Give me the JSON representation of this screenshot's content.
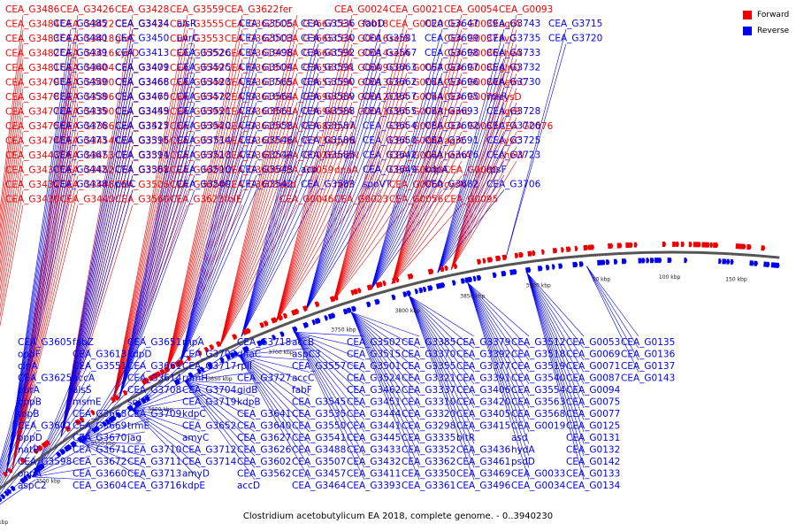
{
  "caption": "Clostridium acetobutylicum EA 2018, complete genome. - 0..3940230",
  "legend": [
    {
      "label": "Forward",
      "color": "#ee0000"
    },
    {
      "label": "Reverse",
      "color": "#0000ee"
    }
  ],
  "colors": {
    "forward": "#ee0000",
    "reverse": "#0000ee",
    "backbone": "#555555"
  },
  "ticks": [
    "3450 kbp",
    "3500 kbp",
    "3550 kbp",
    "3600 kbp",
    "3650 kbp",
    "3700 kbp",
    "3750 kbp",
    "3800 kbp",
    "3850 kbp",
    "3900 kbp",
    "50 kbp",
    "100 kbp",
    "150 kbp"
  ],
  "labels": {
    "forward": [
      "CEA_G3486",
      "CEA_G3484",
      "CEA_G3483",
      "CEA_G3482",
      "CEA_G3481",
      "CEA_G3479",
      "CEA_G3478",
      "CEA_G3477",
      "CEA_G3475",
      "CEA_G3474",
      "CEA_G3443",
      "CEA_G3437",
      "CEA_G3431",
      "CEA_G3430",
      "CEA_G3426",
      "CEA_G3422",
      "CEA_G3418",
      "CEA_G3416",
      "CEA_G3404",
      "CEA_G3400",
      "CEA_G3396",
      "CEA_G3390",
      "CEA_G3386",
      "CEA_G3454",
      "CEA_G3453",
      "CEA_G3452",
      "CEA_G3448",
      "CEA_G3440",
      "CEA_G3428",
      "CEA_G3424",
      "glvC",
      "xynD",
      "CEA_G3471",
      "CEA_G3466",
      "CEA_G3470",
      "CEA_G3455",
      "CEA_G3517",
      "CEA_G3516",
      "CEA_G3511",
      "CEA_G3508",
      "CEA_G3506",
      "CEA_G3560",
      "CEA_G3559",
      "CEA_G3555",
      "CEA_G3553",
      "CEA_G3552",
      "CEA_G3549",
      "CEA_G3548",
      "CEA_G3547",
      "CEA_G3595",
      "CEA_G3594",
      "CEA_G3573",
      "CEA_G3572",
      "CEA_G3629",
      "CEA_G3624",
      "CEA_G3623",
      "CEA_G3622",
      "CEA_G3621",
      "CEA_G3620",
      "CEA_G3619",
      "CEA_G3618",
      "CEA_G3617",
      "CEA_G3616",
      "CEA_G3608",
      "CEA_G3615",
      "CEA_G3607",
      "CEA_G3612",
      "CEA_G3606",
      "CEA_G3603",
      "folE",
      "fer",
      "CEA_G3667",
      "CEA_G3665",
      "CEA_G3664",
      "CEA_G3658",
      "CEA_G3653",
      "CEA_G3690",
      "CEA_G3694",
      "CEA_G3683",
      "CEA_G3734",
      "CEA_G0026",
      "CEA_G0059",
      "dcd",
      "CEA_G0046",
      "CEA_G0024",
      "CEA_G0018",
      "CEA_G0016",
      "CEA_G0014",
      "CEA_G0009",
      "CEA_G0013",
      "CEA_G0012",
      "CEA_G0011",
      "gyrA",
      "gyrB",
      "dnaN",
      "dnaA",
      "recF",
      "CEA_G0023",
      "CEA_G0021",
      "CEA_G0020",
      "serS",
      "serA",
      "CEA_G0057",
      "CEA_G0045",
      "CEA_G0044",
      "CEA_G0043",
      "CEA_G0036",
      "CEA_G0042",
      "CEA_G0041",
      "CEA_G0040",
      "CEA_G0060",
      "CEA_G0056",
      "CEA_G0054",
      "CEA_G0039",
      "CEA_G0037",
      "CEA_G0086",
      "CEA_G0085",
      "CEA_G0084",
      "CEA_G0070",
      "hemL",
      "CEA_G0083",
      "agrC",
      "hemA",
      "CEA_G0080",
      "cysN",
      "CEA_G0095",
      "CEA_G0093",
      "agrA",
      "ilvC",
      "cheA",
      "glnQ",
      "hemC",
      "cysD",
      "agrB",
      "CEA_G0076",
      "cysC",
      "cheW"
    ],
    "reverse": [
      "CEA_G3485",
      "CEA_G3480",
      "CEA_G3439",
      "CEA_G3460",
      "CEA_G3459",
      "CEA_G3458",
      "CEA_G3435",
      "CEA_G3476",
      "CEA_G3473",
      "CEA_G3467",
      "CEA_G3442",
      "CEA_G3438",
      "CEA_G3434",
      "CEA_G3450",
      "CEA_G3413",
      "CEA_G3409",
      "CEA_G3468",
      "CEA_G3465",
      "CEA_G3449",
      "CEA_G3425",
      "CEA_G3395",
      "CEA_G3394",
      "CEA_G3381",
      "polC",
      "alsR",
      "uvrC",
      "CEA_G3526",
      "CEA_G3525",
      "CEA_G3523",
      "CEA_G3522",
      "CEA_G3521",
      "CEA_G3520",
      "CEA_G3514",
      "CEA_G3513",
      "CEA_G3510",
      "CEA_G3509",
      "CEA_G3505",
      "CEA_G3503",
      "CEA_G3498",
      "CEA_G3504",
      "CEA_G3565",
      "CEA_G3564",
      "CEA_G3561",
      "CEA_G3558",
      "CEA_G3546",
      "CEA_G3544",
      "CEA_G3543",
      "CEA_G3542",
      "CEA_G3536",
      "CEA_G3530",
      "CEA_G3592",
      "CEA_G3591",
      "CEA_G3590",
      "CEA_G3589",
      "CEA_G3588",
      "CEA_G3587",
      "CEA_G3586",
      "CEA_G3585",
      "acp",
      "CEA_G3583",
      "fabD",
      "CEA_G3581",
      "CEA_G3567",
      "CEA_G3663",
      "CEA_G3662",
      "CEA_G3657",
      "CEA_G3655",
      "CEA_G3654",
      "CEA_G3650",
      "CEA_G3642",
      "CEA_G3649",
      "spoVT",
      "CEA_G3647",
      "CEA_G3699",
      "CEA_G3698",
      "CEA_G3697",
      "CEA_G3696",
      "CEA_G3695",
      "CEA_G3693",
      "CEA_G3692",
      "CEA_G3691",
      "CEA_G3676",
      "kdpA",
      "CEA_G3682",
      "CEA_G3743",
      "CEA_G3735",
      "CEA_G3733",
      "CEA_G3732",
      "CEA_G3730",
      "rpsR",
      "CEA_G3728",
      "CEA_G3726",
      "CEA_G3725",
      "CEA_G3723",
      "rpsF",
      "CEA_G3706",
      "CEA_G3715",
      "CEA_G3720"
    ],
    "lower": [
      "CEA_G3605",
      "oppF",
      "cinA",
      "CEA_G3625",
      "purA",
      "oppB",
      "topB",
      "CEA_G3601",
      "oppD",
      "natB",
      "CEA_G3598",
      "oppA",
      "aspC2",
      "fabZ",
      "CEA_G3613",
      "CEA_G3551",
      "accA",
      "alsS",
      "msmE",
      "CEA_G3668",
      "CEA_G3669",
      "CEA_G3670",
      "CEA_G3671",
      "CEA_G3672",
      "CEA_G3660",
      "CEA_G3604",
      "CEA_G3651",
      "kdpD",
      "CEA_G3661",
      "CEA_G3614",
      "CEA_G3708",
      "soj",
      "CEA_G3709",
      "trmE",
      "jag",
      "CEA_G3710",
      "CEA_G3711",
      "CEA_G3713",
      "CEA_G3716",
      "rnpA",
      "CEA_G3703",
      "CEA_G3717",
      "rpmH",
      "CEA_G3704",
      "CEA_G3719",
      "kdpC",
      "CEA_G3652",
      "amyC",
      "CEA_G3712",
      "CEA_G3714",
      "amyD",
      "kdpE",
      "CEA_G3718",
      "dnaC",
      "rplI",
      "CEA_G3727",
      "gidB",
      "kdpB",
      "CEA_G3641",
      "CEA_G3640",
      "CEA_G3627",
      "CEA_G3626",
      "CEA_G3602",
      "CEA_G3562",
      "accD",
      "accB",
      "aspC3",
      "CEA_G3557",
      "accC",
      "fabF",
      "CEA_G3545",
      "CEA_G3535",
      "CEA_G3550",
      "CEA_G3541",
      "CEA_G3488",
      "CEA_G3507",
      "CEA_G3457",
      "CEA_G3464",
      "CEA_G3502",
      "CEA_G3515",
      "CEA_G3501",
      "CEA_G3524",
      "CEA_G3462",
      "CEA_G3451",
      "CEA_G3444",
      "CEA_G3441",
      "CEA_G3445",
      "CEA_G3433",
      "CEA_G3432",
      "CEA_G3411",
      "CEA_G3393",
      "CEA_G3385",
      "CEA_G3370",
      "CEA_G3355",
      "CEA_G3321",
      "CEA_G3337",
      "CEA_G3310",
      "CEA_G3320",
      "CEA_G3298",
      "CEA_G3335",
      "CEA_G3352",
      "CEA_G3362",
      "CEA_G3350",
      "CEA_G3361",
      "CEA_G3379",
      "CEA_G3392",
      "CEA_G3377",
      "CEA_G3391",
      "CEA_G3406",
      "CEA_G3420",
      "CEA_G3405",
      "CEA_G3415",
      "bltR",
      "CEA_G3436",
      "CEA_G3461",
      "CEA_G3469",
      "CEA_G3496",
      "CEA_G3512",
      "CEA_G3518",
      "CEA_G3519",
      "CEA_G3540",
      "CEA_G3554",
      "CEA_G3563",
      "CEA_G3568",
      "CEA_G0019",
      "asd",
      "hydA",
      "psdD",
      "CEA_G0033",
      "CEA_G0034",
      "CEA_G0053",
      "CEA_G0069",
      "CEA_G0071",
      "CEA_G0087",
      "CEA_G0094",
      "CEA_G0075",
      "CEA_G0077",
      "CEA_G0125",
      "CEA_G0131",
      "CEA_G0132",
      "CEA_G0142",
      "CEA_G0133",
      "CEA_G0134",
      "CEA_G0135",
      "CEA_G0136",
      "CEA_G0137",
      "CEA_G0143"
    ]
  }
}
